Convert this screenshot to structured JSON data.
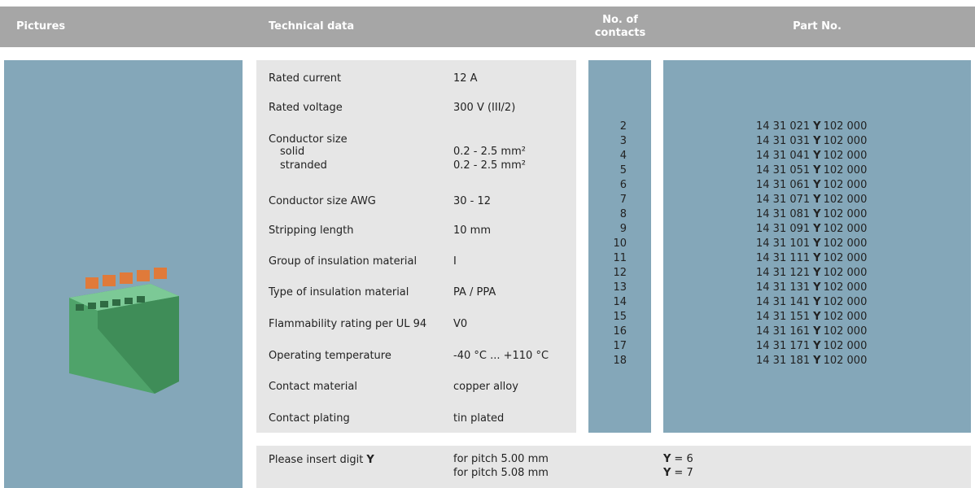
{
  "header": {
    "pictures": "Pictures",
    "technical_data": "Technical data",
    "contacts": "No. of contacts",
    "part_no": "Part No."
  },
  "technical_data": [
    {
      "label": "Rated current",
      "value": "12 A"
    },
    {
      "label": "Rated voltage",
      "value": "300 V (III/2)"
    },
    {
      "label": "Conductor size",
      "sub": [
        {
          "label": "solid",
          "value": "0.2 - 2.5 mm²"
        },
        {
          "label": "stranded",
          "value": "0.2 - 2.5 mm²"
        }
      ]
    },
    {
      "label": "Conductor size AWG",
      "value": "30 - 12"
    },
    {
      "label": "Stripping length",
      "value": "10 mm"
    },
    {
      "label": "Group of insulation material",
      "value": "I"
    },
    {
      "label": "Type of insulation material",
      "value": "PA / PPA"
    },
    {
      "label": "Flammability rating per UL 94",
      "value": "V0"
    },
    {
      "label": "Operating temperature",
      "value": "-40 °C ... +110 °C"
    },
    {
      "label": "Contact material",
      "value": "copper alloy"
    },
    {
      "label": "Contact plating",
      "value": "tin plated"
    }
  ],
  "contacts": [
    2,
    3,
    4,
    5,
    6,
    7,
    8,
    9,
    10,
    11,
    12,
    13,
    14,
    15,
    16,
    17,
    18
  ],
  "parts": [
    {
      "prefix": "14 31 021",
      "digit": "Y",
      "suffix": "102 000"
    },
    {
      "prefix": "14 31 031",
      "digit": "Y",
      "suffix": "102 000"
    },
    {
      "prefix": "14 31 041",
      "digit": "Y",
      "suffix": "102 000"
    },
    {
      "prefix": "14 31 051",
      "digit": "Y",
      "suffix": "102 000"
    },
    {
      "prefix": "14 31 061",
      "digit": "Y",
      "suffix": "102 000"
    },
    {
      "prefix": "14 31 071",
      "digit": "Y",
      "suffix": "102 000"
    },
    {
      "prefix": "14 31 081",
      "digit": "Y",
      "suffix": "102 000"
    },
    {
      "prefix": "14 31 091",
      "digit": "Y",
      "suffix": "102 000"
    },
    {
      "prefix": "14 31 101",
      "digit": "Y",
      "suffix": "102 000"
    },
    {
      "prefix": "14 31 111",
      "digit": "Y",
      "suffix": "102 000"
    },
    {
      "prefix": "14 31 121",
      "digit": "Y",
      "suffix": "102 000"
    },
    {
      "prefix": "14 31 131",
      "digit": "Y",
      "suffix": "102 000"
    },
    {
      "prefix": "14 31 141",
      "digit": "Y",
      "suffix": "102 000"
    },
    {
      "prefix": "14 31 151",
      "digit": "Y",
      "suffix": "102 000"
    },
    {
      "prefix": "14 31 161",
      "digit": "Y",
      "suffix": "102 000"
    },
    {
      "prefix": "14 31 171",
      "digit": "Y",
      "suffix": "102 000"
    },
    {
      "prefix": "14 31 181",
      "digit": "Y",
      "suffix": "102 000"
    }
  ],
  "note": {
    "label": "Please insert digit",
    "digit": "Y",
    "options": [
      {
        "pitch": "for pitch 5.00 mm",
        "digit": "Y",
        "value": "= 6"
      },
      {
        "pitch": "for pitch 5.08 mm",
        "digit": "Y",
        "value": "= 7"
      }
    ]
  }
}
